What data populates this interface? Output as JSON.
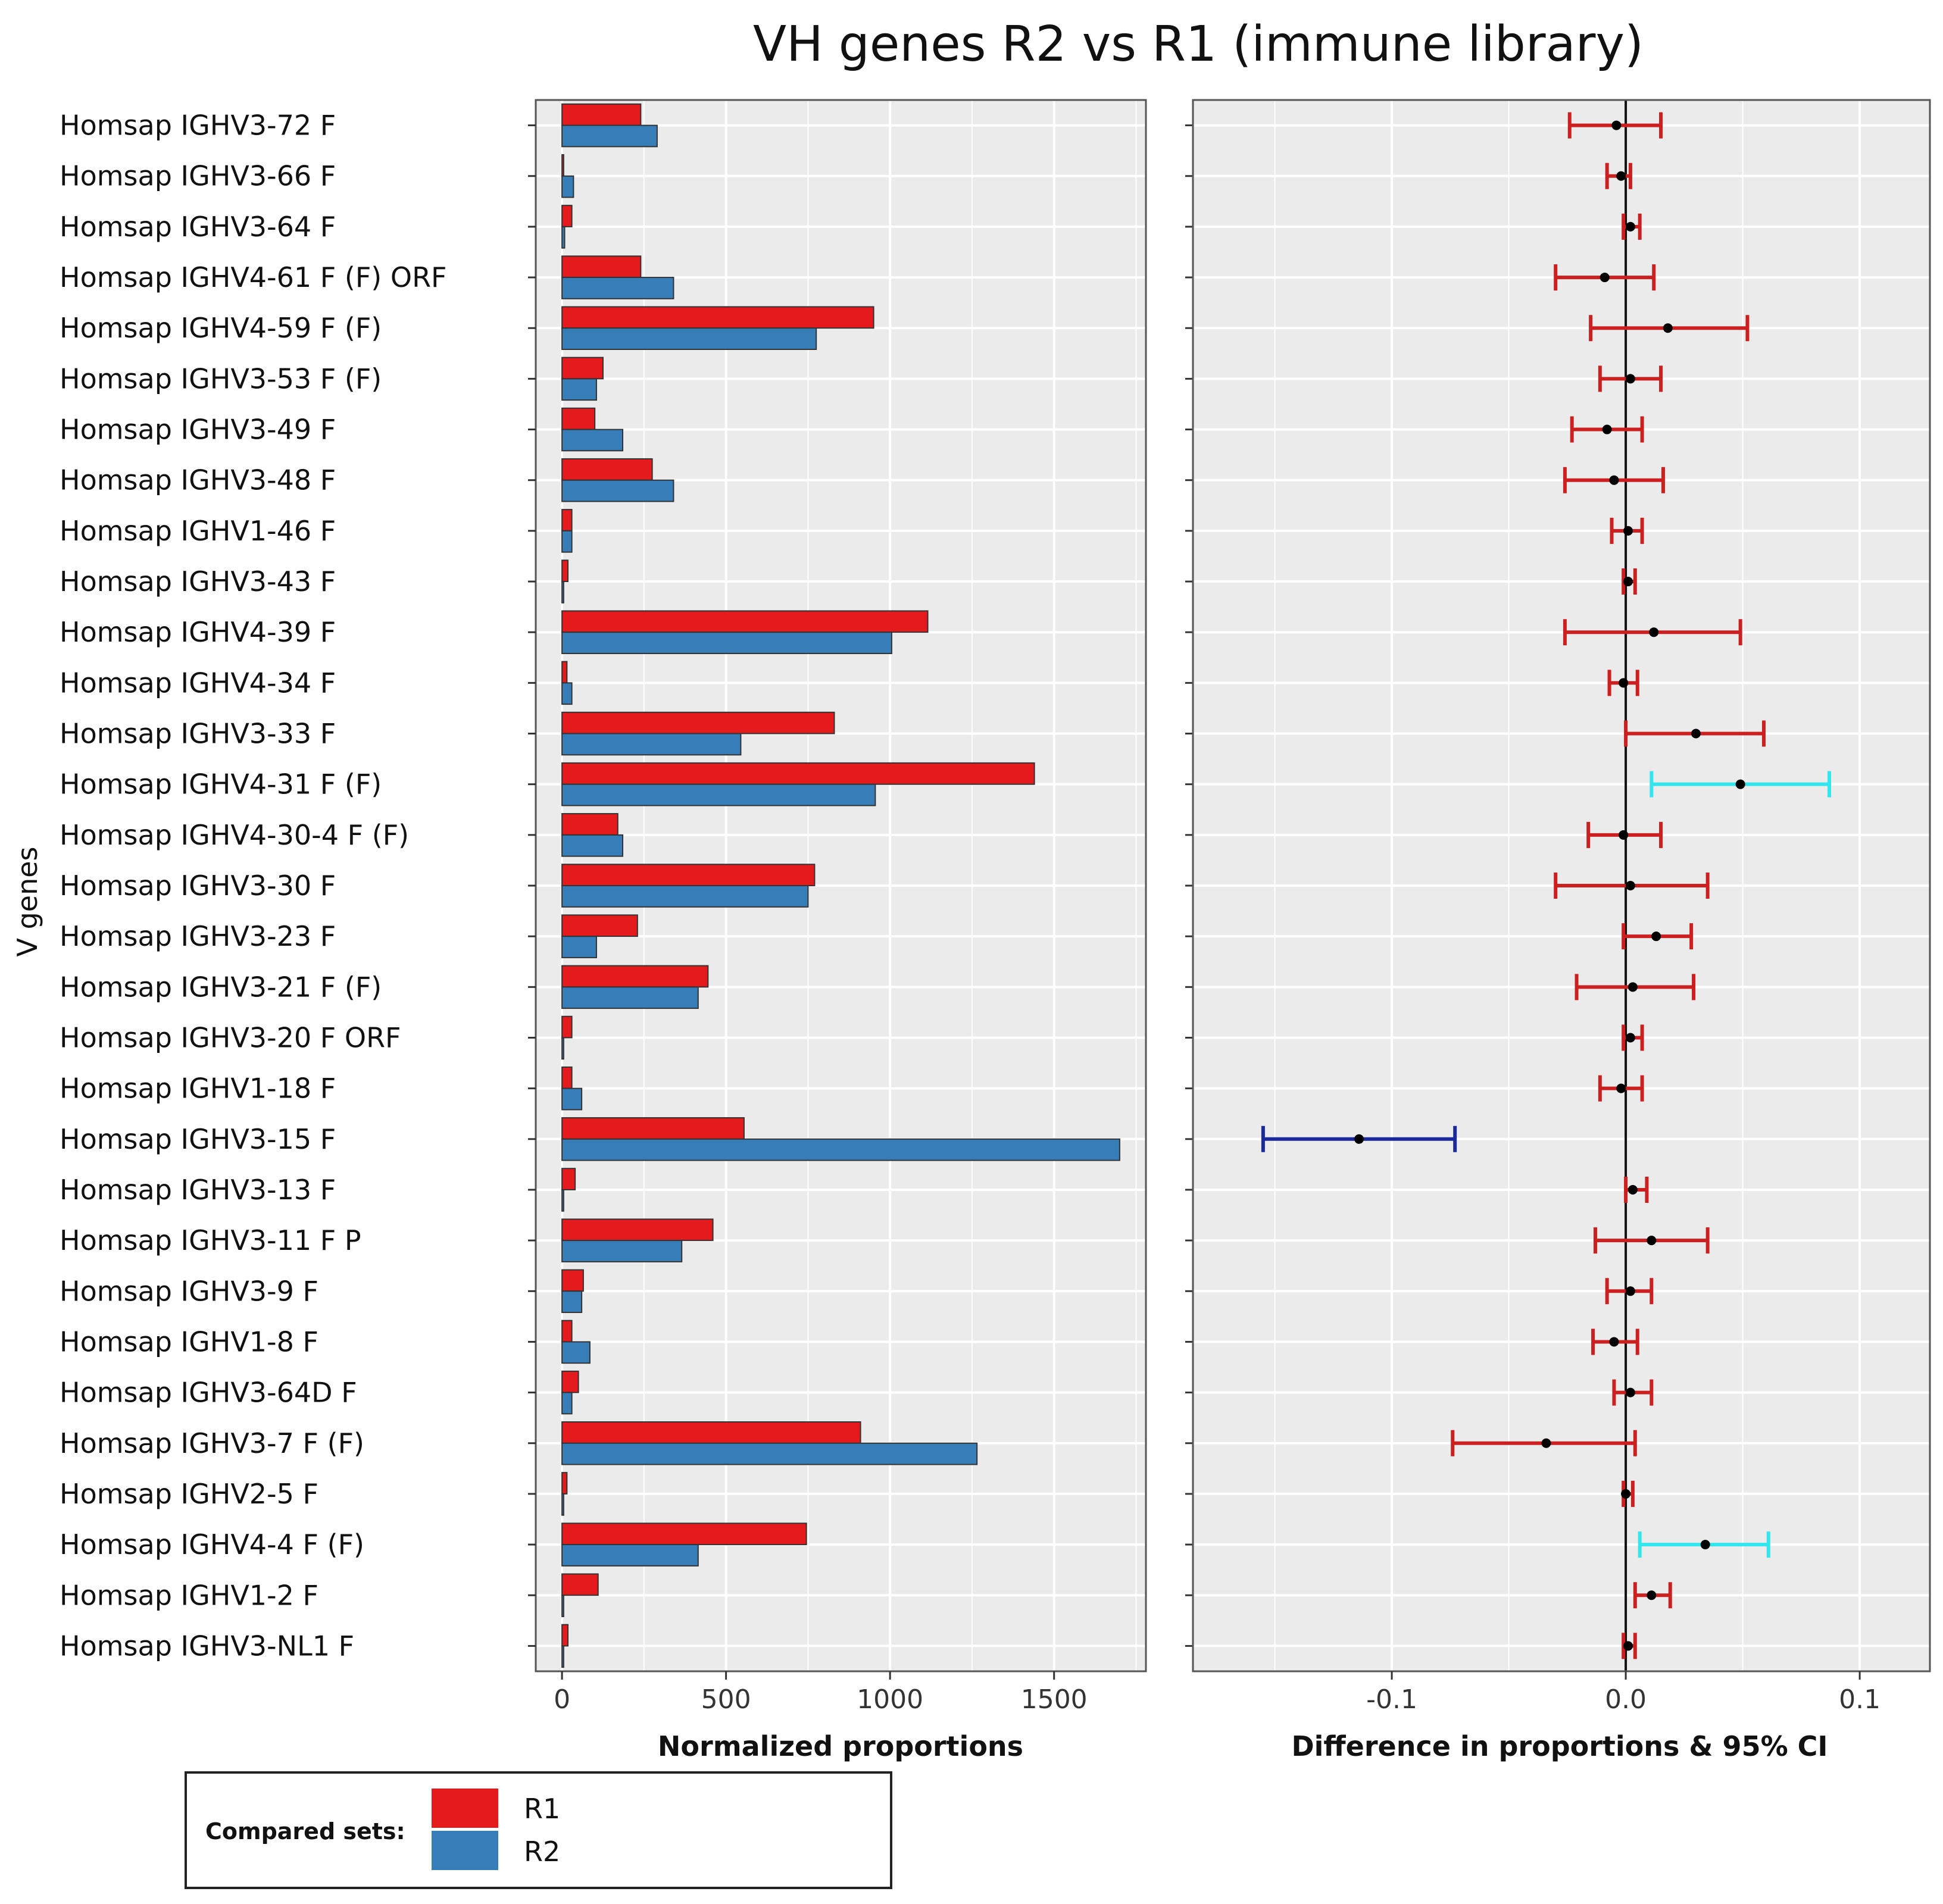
{
  "chart_data": {
    "title": "VH genes R2 vs R1 (immune library)",
    "ylabel": "V genes",
    "categories": [
      "Homsap IGHV3-72 F",
      "Homsap IGHV3-66 F",
      "Homsap IGHV3-64 F",
      "Homsap IGHV4-61 F (F) ORF",
      "Homsap IGHV4-59 F (F)",
      "Homsap IGHV3-53 F (F)",
      "Homsap IGHV3-49 F",
      "Homsap IGHV3-48 F",
      "Homsap IGHV1-46 F",
      "Homsap IGHV3-43 F",
      "Homsap IGHV4-39 F",
      "Homsap IGHV4-34 F",
      "Homsap IGHV3-33 F",
      "Homsap IGHV4-31 F (F)",
      "Homsap IGHV4-30-4 F (F)",
      "Homsap IGHV3-30 F",
      "Homsap IGHV3-23 F",
      "Homsap IGHV3-21 F (F)",
      "Homsap IGHV3-20 F ORF",
      "Homsap IGHV1-18 F",
      "Homsap IGHV3-15 F",
      "Homsap IGHV3-13 F",
      "Homsap IGHV3-11 F P",
      "Homsap IGHV3-9 F",
      "Homsap IGHV1-8 F",
      "Homsap IGHV3-64D F",
      "Homsap IGHV3-7 F (F)",
      "Homsap IGHV2-5 F",
      "Homsap IGHV4-4 F (F)",
      "Homsap IGHV1-2 F",
      "Homsap IGHV3-NL1 F"
    ],
    "bar_panel": {
      "type": "bar",
      "orientation": "horizontal",
      "xlabel": "Normalized proportions",
      "xlim": [
        -80,
        1780
      ],
      "xticks": [
        0,
        500,
        1000,
        1500
      ],
      "series": [
        {
          "name": "R1",
          "color": "#e41a1c",
          "values": [
            240,
            5,
            30,
            240,
            950,
            125,
            100,
            275,
            30,
            18,
            1115,
            15,
            830,
            1440,
            170,
            770,
            230,
            445,
            30,
            30,
            555,
            40,
            460,
            65,
            30,
            50,
            910,
            15,
            745,
            110,
            18
          ]
        },
        {
          "name": "R2",
          "color": "#377eb8",
          "values": [
            290,
            35,
            8,
            340,
            775,
            105,
            185,
            340,
            30,
            5,
            1005,
            30,
            545,
            955,
            185,
            750,
            105,
            415,
            5,
            60,
            1700,
            5,
            365,
            60,
            85,
            30,
            1265,
            5,
            415,
            5,
            5
          ]
        }
      ]
    },
    "ci_panel": {
      "type": "errorbar",
      "xlabel": "Difference in proportions & 95% CI",
      "xlim": [
        -0.185,
        0.13
      ],
      "xticks": [
        -0.1,
        0.0,
        0.1
      ],
      "xtick_labels": [
        "-0.1",
        "0.0",
        "0.1"
      ],
      "estimate": [
        -0.004,
        -0.002,
        0.002,
        -0.009,
        0.018,
        0.002,
        -0.008,
        -0.005,
        0.001,
        0.001,
        0.012,
        -0.001,
        0.03,
        0.049,
        -0.001,
        0.002,
        0.013,
        0.003,
        0.002,
        -0.002,
        -0.114,
        0.003,
        0.011,
        0.002,
        -0.005,
        0.002,
        -0.034,
        0.0,
        0.034,
        0.011,
        0.001
      ],
      "lower": [
        -0.024,
        -0.008,
        -0.001,
        -0.03,
        -0.015,
        -0.011,
        -0.023,
        -0.026,
        -0.006,
        -0.001,
        -0.026,
        -0.007,
        0.0,
        0.011,
        -0.016,
        -0.03,
        -0.001,
        -0.021,
        -0.001,
        -0.011,
        -0.155,
        0.0,
        -0.013,
        -0.008,
        -0.014,
        -0.005,
        -0.074,
        -0.001,
        0.006,
        0.004,
        -0.001
      ],
      "upper": [
        0.015,
        0.002,
        0.006,
        0.012,
        0.052,
        0.015,
        0.007,
        0.016,
        0.007,
        0.004,
        0.049,
        0.005,
        0.059,
        0.087,
        0.015,
        0.035,
        0.028,
        0.029,
        0.007,
        0.007,
        -0.073,
        0.009,
        0.035,
        0.011,
        0.005,
        0.011,
        0.004,
        0.003,
        0.061,
        0.019,
        0.004
      ],
      "colors": [
        "#cc1f1f",
        "#cc1f1f",
        "#cc1f1f",
        "#cc1f1f",
        "#cc1f1f",
        "#cc1f1f",
        "#cc1f1f",
        "#cc1f1f",
        "#cc1f1f",
        "#cc1f1f",
        "#cc1f1f",
        "#cc1f1f",
        "#cc1f1f",
        "#33e6ee",
        "#cc1f1f",
        "#cc1f1f",
        "#cc1f1f",
        "#cc1f1f",
        "#cc1f1f",
        "#cc1f1f",
        "#1a2a9c",
        "#cc1f1f",
        "#cc1f1f",
        "#cc1f1f",
        "#cc1f1f",
        "#cc1f1f",
        "#cc1f1f",
        "#cc1f1f",
        "#33e6ee",
        "#cc1f1f",
        "#cc1f1f"
      ]
    },
    "legend": {
      "title": "Compared sets:",
      "entries": [
        {
          "label": "R1",
          "color": "#e41a1c"
        },
        {
          "label": "R2",
          "color": "#377eb8"
        }
      ],
      "position": "bottom-left"
    }
  }
}
